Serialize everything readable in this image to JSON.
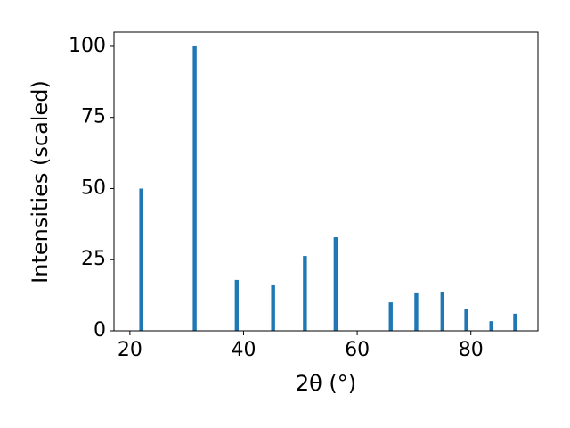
{
  "chart_data": {
    "type": "bar",
    "x_label": "2θ (°)",
    "y_label": "Intensities (scaled)",
    "x": [
      22.0,
      31.4,
      38.8,
      45.2,
      50.8,
      56.2,
      65.9,
      70.4,
      75.0,
      79.2,
      83.6,
      87.8
    ],
    "values": [
      50,
      100,
      17.9,
      16.0,
      26.3,
      32.9,
      10.0,
      13.2,
      13.8,
      7.8,
      3.4,
      6.0
    ],
    "color": "#1f77b4",
    "xlim": [
      17.2,
      91.8
    ],
    "ylim": [
      0,
      105
    ],
    "xticks": [
      20,
      40,
      60,
      80
    ],
    "yticks": [
      0,
      25,
      50,
      75,
      100
    ],
    "grid": false
  }
}
